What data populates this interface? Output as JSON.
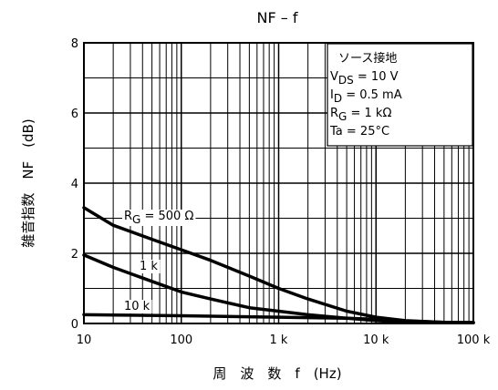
{
  "chart_data": {
    "type": "line",
    "title": "NF – f",
    "xlabel": "周　波　数　f　(Hz)",
    "ylabel": "雑音指数　NF　(dB)",
    "x_scale": "log",
    "xlim": [
      10,
      100000
    ],
    "ylim": [
      0,
      8
    ],
    "x_ticks": [
      {
        "value": 10,
        "label": "10"
      },
      {
        "value": 100,
        "label": "100"
      },
      {
        "value": 1000,
        "label": "1 k"
      },
      {
        "value": 10000,
        "label": "10 k"
      },
      {
        "value": 100000,
        "label": "100 k"
      }
    ],
    "y_ticks": [
      {
        "value": 0,
        "label": "0"
      },
      {
        "value": 2,
        "label": "2"
      },
      {
        "value": 4,
        "label": "4"
      },
      {
        "value": 6,
        "label": "6"
      },
      {
        "value": 8,
        "label": "8"
      }
    ],
    "grid": true,
    "conditions": {
      "title": "ソース接地",
      "lines": [
        {
          "main": "V",
          "sub": "DS",
          "rest": " = 10 V"
        },
        {
          "main": "I",
          "sub": "D",
          "rest": " = 0.5 mA"
        },
        {
          "main": "R",
          "sub": "G",
          "rest": " = 1 kΩ"
        },
        {
          "main": "Ta",
          "sub": "",
          "rest": " = 25°C"
        }
      ]
    },
    "series": [
      {
        "name": "RG = 500 Ω",
        "label_main": "R",
        "label_sub": "G",
        "label_rest": " = 500 Ω",
        "x": [
          10,
          20,
          50,
          100,
          200,
          500,
          1000,
          2000,
          5000,
          10000,
          20000,
          50000,
          100000
        ],
        "y": [
          3.3,
          2.8,
          2.4,
          2.1,
          1.8,
          1.35,
          1.0,
          0.7,
          0.35,
          0.18,
          0.08,
          0.03,
          0.03
        ]
      },
      {
        "name": "1 k",
        "label_main": "1 k",
        "label_sub": "",
        "label_rest": "",
        "x": [
          10,
          20,
          50,
          100,
          200,
          500,
          1000,
          2000,
          5000,
          10000,
          20000,
          50000,
          100000
        ],
        "y": [
          1.95,
          1.6,
          1.2,
          0.9,
          0.7,
          0.45,
          0.35,
          0.25,
          0.15,
          0.08,
          0.04,
          0.02,
          0.02
        ]
      },
      {
        "name": "10 k",
        "label_main": "10 k",
        "label_sub": "",
        "label_rest": "",
        "x": [
          10,
          100,
          1000,
          5000,
          10000,
          20000,
          50000,
          100000
        ],
        "y": [
          0.25,
          0.22,
          0.18,
          0.15,
          0.12,
          0.07,
          0.03,
          0.02
        ]
      }
    ]
  }
}
